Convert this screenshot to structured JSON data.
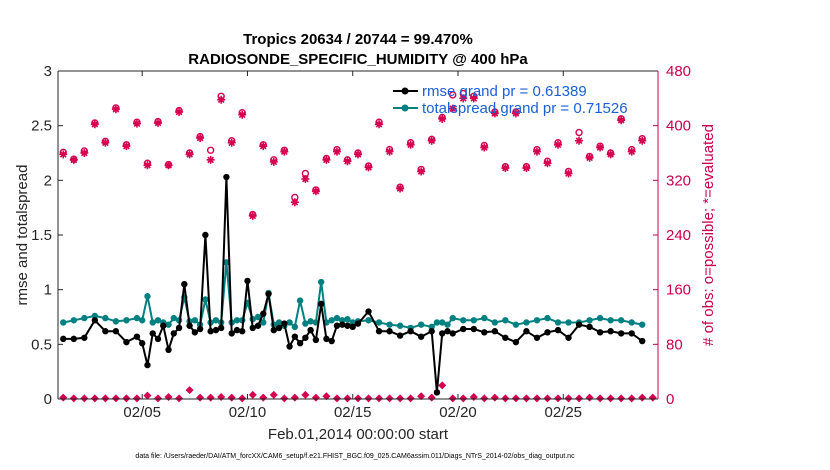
{
  "chart_data": {
    "type": "line",
    "title_line1": "Tropics 20634 / 20744 = 99.470%",
    "title_line2": "RADIOSONDE_SPECIFIC_HUMIDITY @ 400 hPa",
    "xlabel": "Feb.01,2014 00:00:00 start",
    "ylabel_left": "rmse and totalspread",
    "ylabel_right": "# of obs: o=possible; *=evaluated",
    "footer": "data file: /Users/raeder/DAI/ATM_forcXX/CAM6_setup/f.e21.FHIST_BGC.f09_025.CAM6assim.011/Diags_NTrS_2014-02/obs_diag_output.nc",
    "xlim": [
      1,
      29.5
    ],
    "ylim_left": [
      0,
      3
    ],
    "ylim_right": [
      0,
      480
    ],
    "x_ticks": [
      5,
      10,
      15,
      20,
      25
    ],
    "x_tick_labels": [
      "02/05",
      "02/10",
      "02/15",
      "02/20",
      "02/25"
    ],
    "y_ticks_left": [
      0,
      0.5,
      1,
      1.5,
      2,
      2.5,
      3
    ],
    "y_tick_labels_left": [
      "0",
      "0.5",
      "1",
      "1.5",
      "2",
      "2.5",
      "3"
    ],
    "y_ticks_right": [
      0,
      80,
      160,
      240,
      320,
      400,
      480
    ],
    "y_tick_labels_right": [
      "0",
      "80",
      "160",
      "240",
      "320",
      "400",
      "480"
    ],
    "legend": [
      "rmse grand pr = 0.61389",
      "totalspread grand pr = 0.71526"
    ],
    "colors": {
      "rmse": "#000000",
      "spread": "#008080",
      "obs": "#d6004f",
      "axis_right": "#c8004f",
      "legend_text": "#1a5fd6"
    },
    "series": [
      {
        "name": "rmse",
        "x": [
          1.25,
          1.75,
          2.25,
          2.75,
          3.25,
          3.75,
          4.25,
          4.75,
          5.0,
          5.25,
          5.5,
          5.75,
          6.0,
          6.25,
          6.5,
          6.75,
          7.0,
          7.25,
          7.5,
          7.75,
          8.0,
          8.25,
          8.5,
          8.75,
          9.0,
          9.25,
          9.5,
          9.75,
          10.0,
          10.25,
          10.5,
          10.75,
          11.0,
          11.25,
          11.5,
          11.75,
          12.0,
          12.25,
          12.5,
          12.75,
          13.0,
          13.25,
          13.5,
          13.75,
          14.0,
          14.25,
          14.5,
          14.75,
          15.0,
          15.25,
          15.75,
          16.25,
          16.75,
          17.25,
          17.75,
          18.25,
          18.75,
          19.0,
          19.25,
          19.5,
          19.75,
          20.25,
          20.75,
          21.25,
          21.75,
          22.25,
          22.75,
          23.25,
          23.75,
          24.25,
          24.75,
          25.25,
          25.75,
          26.25,
          26.75,
          27.25,
          27.75,
          28.25,
          28.75
        ],
        "values": [
          0.55,
          0.55,
          0.56,
          0.72,
          0.62,
          0.62,
          0.52,
          0.57,
          0.51,
          0.31,
          0.6,
          0.55,
          0.67,
          0.45,
          0.6,
          0.65,
          1.05,
          0.67,
          0.61,
          0.64,
          1.5,
          0.62,
          0.63,
          0.65,
          2.03,
          0.6,
          0.63,
          0.62,
          1.08,
          0.65,
          0.67,
          0.78,
          0.96,
          0.63,
          0.65,
          0.69,
          0.48,
          0.57,
          0.51,
          0.56,
          0.63,
          0.54,
          0.87,
          0.55,
          0.53,
          0.67,
          0.68,
          0.67,
          0.66,
          0.69,
          0.8,
          0.62,
          0.62,
          0.58,
          0.62,
          0.57,
          0.62,
          0.06,
          0.6,
          0.62,
          0.6,
          0.64,
          0.64,
          0.61,
          0.62,
          0.56,
          0.52,
          0.62,
          0.56,
          0.61,
          0.63,
          0.56,
          0.68,
          0.66,
          0.61,
          0.62,
          0.6,
          0.6,
          0.53
        ]
      },
      {
        "name": "totalspread",
        "x": [
          1.25,
          1.75,
          2.25,
          2.75,
          3.25,
          3.75,
          4.25,
          4.75,
          5.0,
          5.25,
          5.5,
          5.75,
          6.0,
          6.25,
          6.5,
          6.75,
          7.0,
          7.25,
          7.5,
          7.75,
          8.0,
          8.25,
          8.5,
          8.75,
          9.0,
          9.25,
          9.5,
          9.75,
          10.0,
          10.25,
          10.5,
          10.75,
          11.0,
          11.25,
          11.5,
          11.75,
          12.0,
          12.25,
          12.5,
          12.75,
          13.0,
          13.25,
          13.5,
          13.75,
          14.0,
          14.25,
          14.5,
          14.75,
          15.0,
          15.25,
          15.75,
          16.25,
          16.75,
          17.25,
          17.75,
          18.25,
          18.75,
          19.0,
          19.25,
          19.5,
          19.75,
          20.25,
          20.75,
          21.25,
          21.75,
          22.25,
          22.75,
          23.25,
          23.75,
          24.25,
          24.75,
          25.25,
          25.75,
          26.25,
          26.75,
          27.25,
          27.75,
          28.25,
          28.75
        ],
        "values": [
          0.7,
          0.72,
          0.74,
          0.76,
          0.74,
          0.71,
          0.72,
          0.74,
          0.72,
          0.94,
          0.7,
          0.72,
          0.7,
          0.68,
          0.74,
          0.72,
          0.93,
          0.71,
          0.72,
          0.68,
          0.91,
          0.7,
          0.72,
          0.7,
          1.25,
          0.7,
          0.72,
          0.72,
          0.88,
          0.73,
          0.75,
          0.7,
          0.97,
          0.68,
          0.7,
          0.67,
          0.7,
          0.66,
          0.9,
          0.69,
          0.71,
          0.7,
          1.07,
          0.7,
          0.72,
          0.74,
          0.72,
          0.73,
          0.7,
          0.71,
          0.72,
          0.7,
          0.68,
          0.67,
          0.65,
          0.68,
          0.66,
          0.7,
          0.7,
          0.68,
          0.74,
          0.72,
          0.72,
          0.74,
          0.7,
          0.72,
          0.68,
          0.7,
          0.72,
          0.74,
          0.7,
          0.7,
          0.7,
          0.72,
          0.74,
          0.72,
          0.72,
          0.7,
          0.68
        ]
      }
    ],
    "obs_possible": {
      "x": [
        1.25,
        1.75,
        2.25,
        2.75,
        3.25,
        3.75,
        4.25,
        4.75,
        5.25,
        5.75,
        6.25,
        6.75,
        7.25,
        7.75,
        8.25,
        8.75,
        9.25,
        9.75,
        10.25,
        10.75,
        11.25,
        11.75,
        12.25,
        12.75,
        13.25,
        13.75,
        14.25,
        14.75,
        15.25,
        15.75,
        16.25,
        16.75,
        17.25,
        17.75,
        18.25,
        18.75,
        19.25,
        19.75,
        20.25,
        20.75,
        21.25,
        21.75,
        22.25,
        22.75,
        23.25,
        23.75,
        24.25,
        24.75,
        25.25,
        25.75,
        26.25,
        26.75,
        27.25,
        27.75,
        28.25,
        28.75
      ],
      "values": [
        361,
        351,
        363,
        404,
        377,
        426,
        372,
        405,
        345,
        406,
        343,
        422,
        360,
        384,
        364,
        443,
        378,
        419,
        270,
        372,
        350,
        364,
        295,
        330,
        306,
        352,
        365,
        350,
        360,
        341,
        405,
        365,
        310,
        375,
        336,
        380,
        412,
        445,
        447,
        443,
        371,
        420,
        340,
        420,
        340,
        365,
        348,
        375,
        333,
        390,
        355,
        370,
        360,
        410,
        365,
        381
      ]
    },
    "obs_evaluated": {
      "x": [
        1.25,
        1.75,
        2.25,
        2.75,
        3.25,
        3.75,
        4.25,
        4.75,
        5.25,
        5.75,
        6.25,
        6.75,
        7.25,
        7.75,
        8.25,
        8.75,
        9.25,
        9.75,
        10.25,
        10.75,
        11.25,
        11.75,
        12.25,
        12.75,
        13.25,
        13.75,
        14.25,
        14.75,
        15.25,
        15.75,
        16.25,
        16.75,
        17.25,
        17.75,
        18.25,
        18.75,
        19.25,
        19.75,
        20.25,
        20.75,
        21.25,
        21.75,
        22.25,
        22.75,
        23.25,
        23.75,
        24.25,
        24.75,
        25.25,
        25.75,
        26.25,
        26.75,
        27.25,
        27.75,
        28.25,
        28.75
      ],
      "values": [
        358,
        350,
        360,
        402,
        375,
        424,
        370,
        403,
        342,
        404,
        342,
        420,
        358,
        382,
        350,
        438,
        375,
        416,
        268,
        370,
        347,
        362,
        288,
        322,
        304,
        350,
        362,
        348,
        358,
        339,
        402,
        362,
        308,
        372,
        333,
        378,
        410,
        425,
        440,
        440,
        368,
        418,
        338,
        418,
        338,
        362,
        345,
        372,
        330,
        378,
        353,
        368,
        358,
        408,
        362,
        378
      ]
    },
    "obs_rejected": {
      "x": [
        1.25,
        1.75,
        2.25,
        2.75,
        3.25,
        3.75,
        4.25,
        4.75,
        5.25,
        5.75,
        6.25,
        6.75,
        7.25,
        7.75,
        8.25,
        8.75,
        9.25,
        9.75,
        10.25,
        10.75,
        11.25,
        11.75,
        12.25,
        12.75,
        13.25,
        13.75,
        14.25,
        14.75,
        15.25,
        15.75,
        16.25,
        16.75,
        17.25,
        17.75,
        18.25,
        18.75,
        19.25,
        19.75,
        20.25,
        20.75,
        21.25,
        21.75,
        22.25,
        22.75,
        23.25,
        23.75,
        24.25,
        24.75,
        25.25,
        25.75,
        26.25,
        26.75,
        27.25,
        27.75,
        28.25,
        28.75,
        29.25
      ],
      "values": [
        2,
        1,
        1,
        1,
        1,
        1,
        1,
        1,
        5,
        1,
        3,
        1,
        13,
        2,
        2,
        3,
        2,
        1,
        6,
        2,
        6,
        1,
        2,
        6,
        2,
        4,
        1,
        1,
        1,
        1,
        1,
        1,
        1,
        1,
        4,
        2,
        20,
        1,
        1,
        3,
        1,
        2,
        1,
        1,
        1,
        1,
        1,
        1,
        1,
        1,
        2,
        1,
        1,
        1,
        1,
        2,
        2
      ]
    }
  }
}
